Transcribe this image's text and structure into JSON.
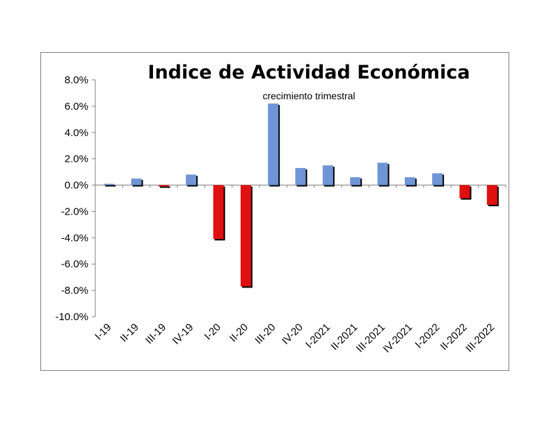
{
  "chart_data": {
    "type": "bar",
    "title": "Indice de Actividad Económica",
    "subtitle": "crecimiento trimestral",
    "xlabel": "",
    "ylabel": "",
    "ylim": [
      -10.0,
      8.0
    ],
    "ytick_step": 2.0,
    "ytick_format": "percent_1dp",
    "categories": [
      "I-19",
      "II-19",
      "III-19",
      "IV-19",
      "I-20",
      "II-20",
      "III-20",
      "IV-20",
      "I-2021",
      "II-2021",
      "III-2021",
      "IV-2021",
      "I-2022",
      "II-2022",
      "III-2022"
    ],
    "values": [
      0.1,
      0.5,
      -0.1,
      0.8,
      -4.1,
      -7.7,
      6.2,
      1.3,
      1.5,
      0.6,
      1.7,
      0.6,
      0.9,
      -1.0,
      -1.5
    ],
    "colors": {
      "positive": "#6f95d6",
      "negative": "#e01010",
      "shadow": "#000000"
    },
    "grid": false,
    "legend": "none"
  }
}
